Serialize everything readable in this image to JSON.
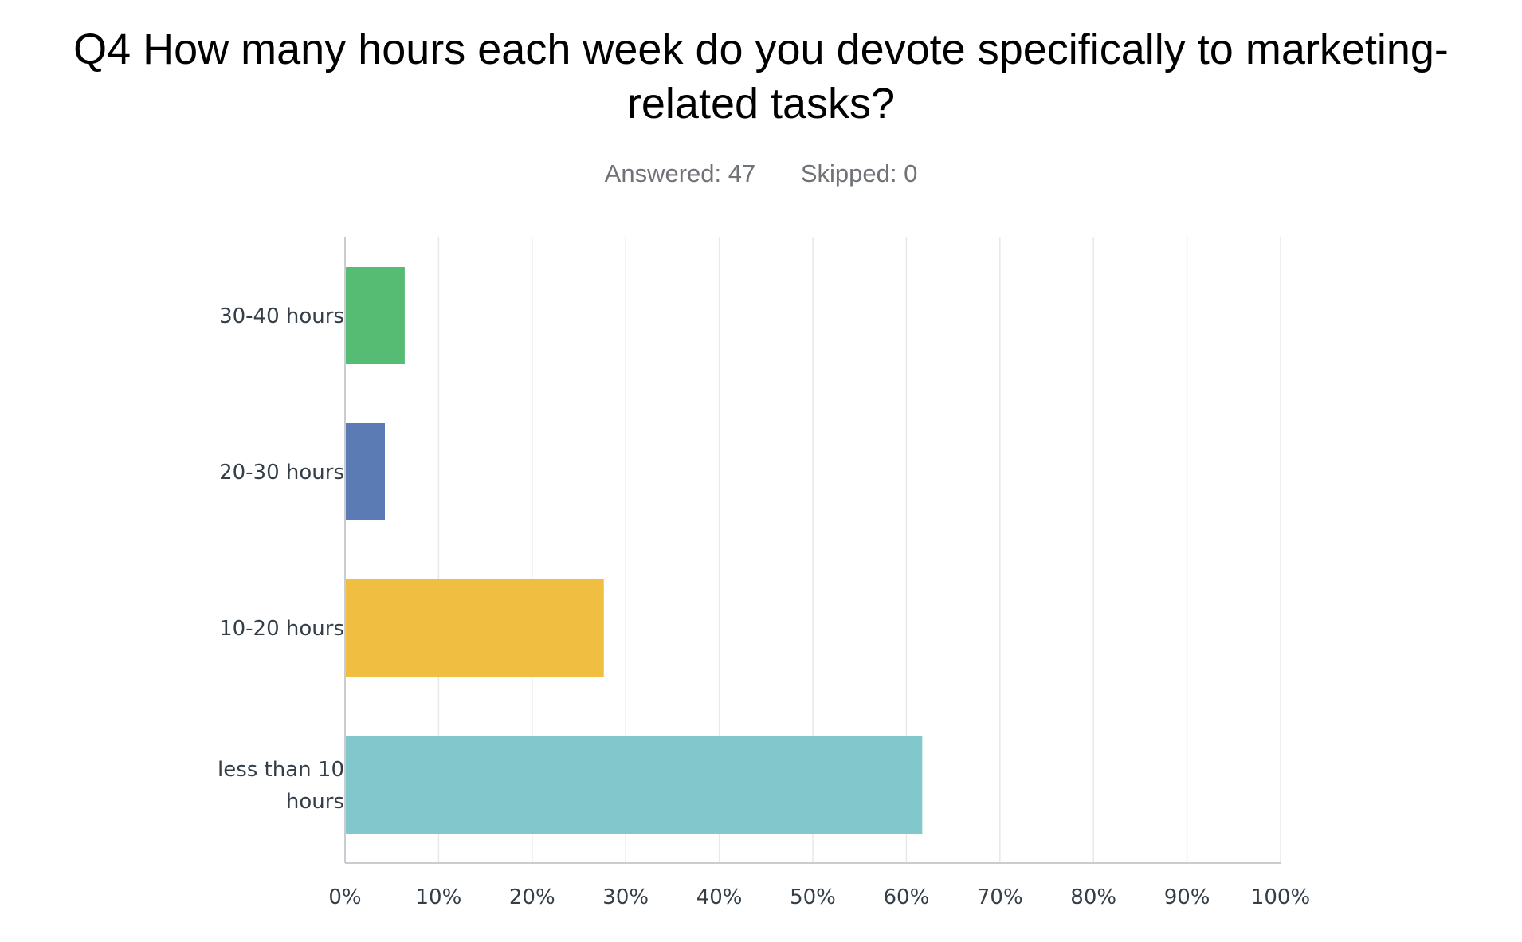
{
  "chart_data": {
    "type": "bar",
    "orientation": "horizontal",
    "title_lines": [
      "Q4 How many hours each week do you devote specifically to marketing-",
      "related tasks?"
    ],
    "answered": "Answered: 47",
    "skipped": "Skipped: 0",
    "categories": [
      [
        "30-40 hours"
      ],
      [
        "20-30 hours"
      ],
      [
        "10-20 hours"
      ],
      [
        "less than 10",
        "hours"
      ]
    ],
    "values": [
      6.38,
      4.26,
      27.66,
      61.7
    ],
    "colors": [
      "#56bb73",
      "#5b7bb4",
      "#f0bf41",
      "#82c7cb"
    ],
    "xlim": [
      0,
      100
    ],
    "xticks": [
      "0%",
      "10%",
      "20%",
      "30%",
      "40%",
      "50%",
      "60%",
      "70%",
      "80%",
      "90%",
      "100%"
    ],
    "grid": true
  }
}
